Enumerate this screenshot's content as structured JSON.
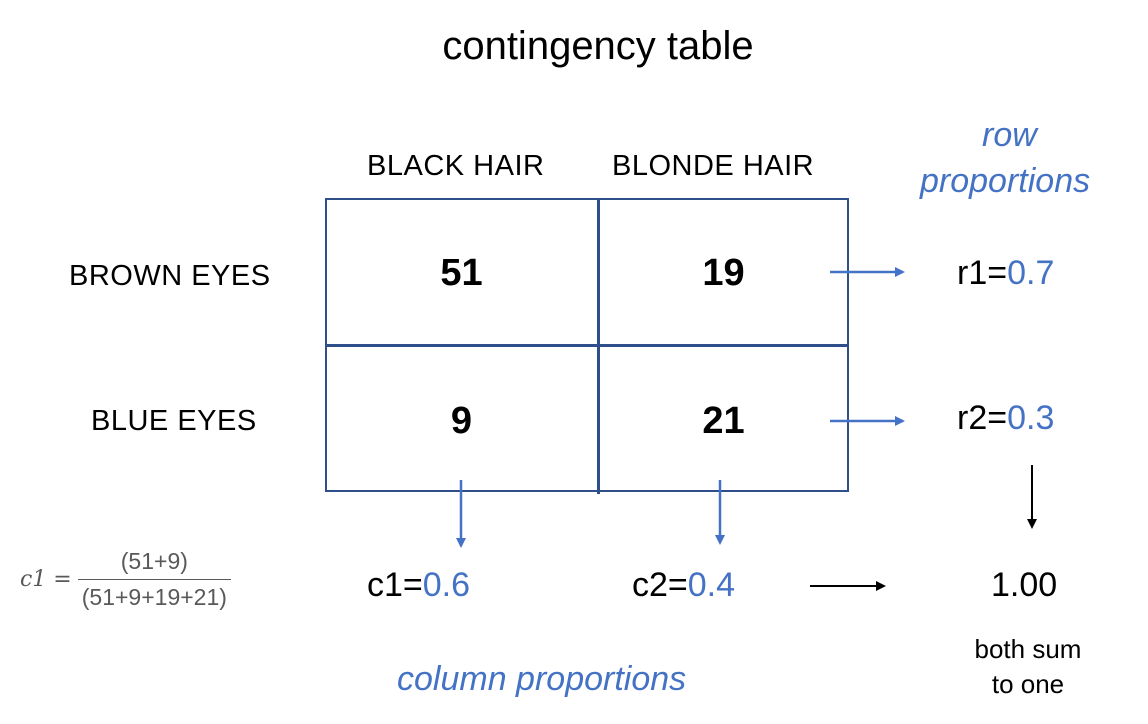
{
  "title": "contingency table",
  "columns": [
    "BLACK HAIR",
    "BLONDE HAIR"
  ],
  "rows": [
    "BROWN EYES",
    "BLUE EYES"
  ],
  "cells": [
    [
      "51",
      "19"
    ],
    [
      "9",
      "21"
    ]
  ],
  "row_proportions": {
    "heading_line1": "row",
    "heading_line2": "proportions",
    "items": [
      {
        "label": "r1=",
        "value": "0.7"
      },
      {
        "label": "r2=",
        "value": "0.3"
      }
    ]
  },
  "column_proportions": {
    "heading": "column proportions",
    "items": [
      {
        "label": "c1=",
        "value": "0.6"
      },
      {
        "label": "c2=",
        "value": "0.4"
      }
    ]
  },
  "total": "1.00",
  "note_line1": "both sum",
  "note_line2": "to one",
  "formula": {
    "lhs": "c1 =",
    "numerator": "(51+9)",
    "denominator": "(51+9+19+21)"
  },
  "colors": {
    "accent": "#4472c4",
    "grid": "#2f4f8a",
    "formula": "#595959"
  }
}
